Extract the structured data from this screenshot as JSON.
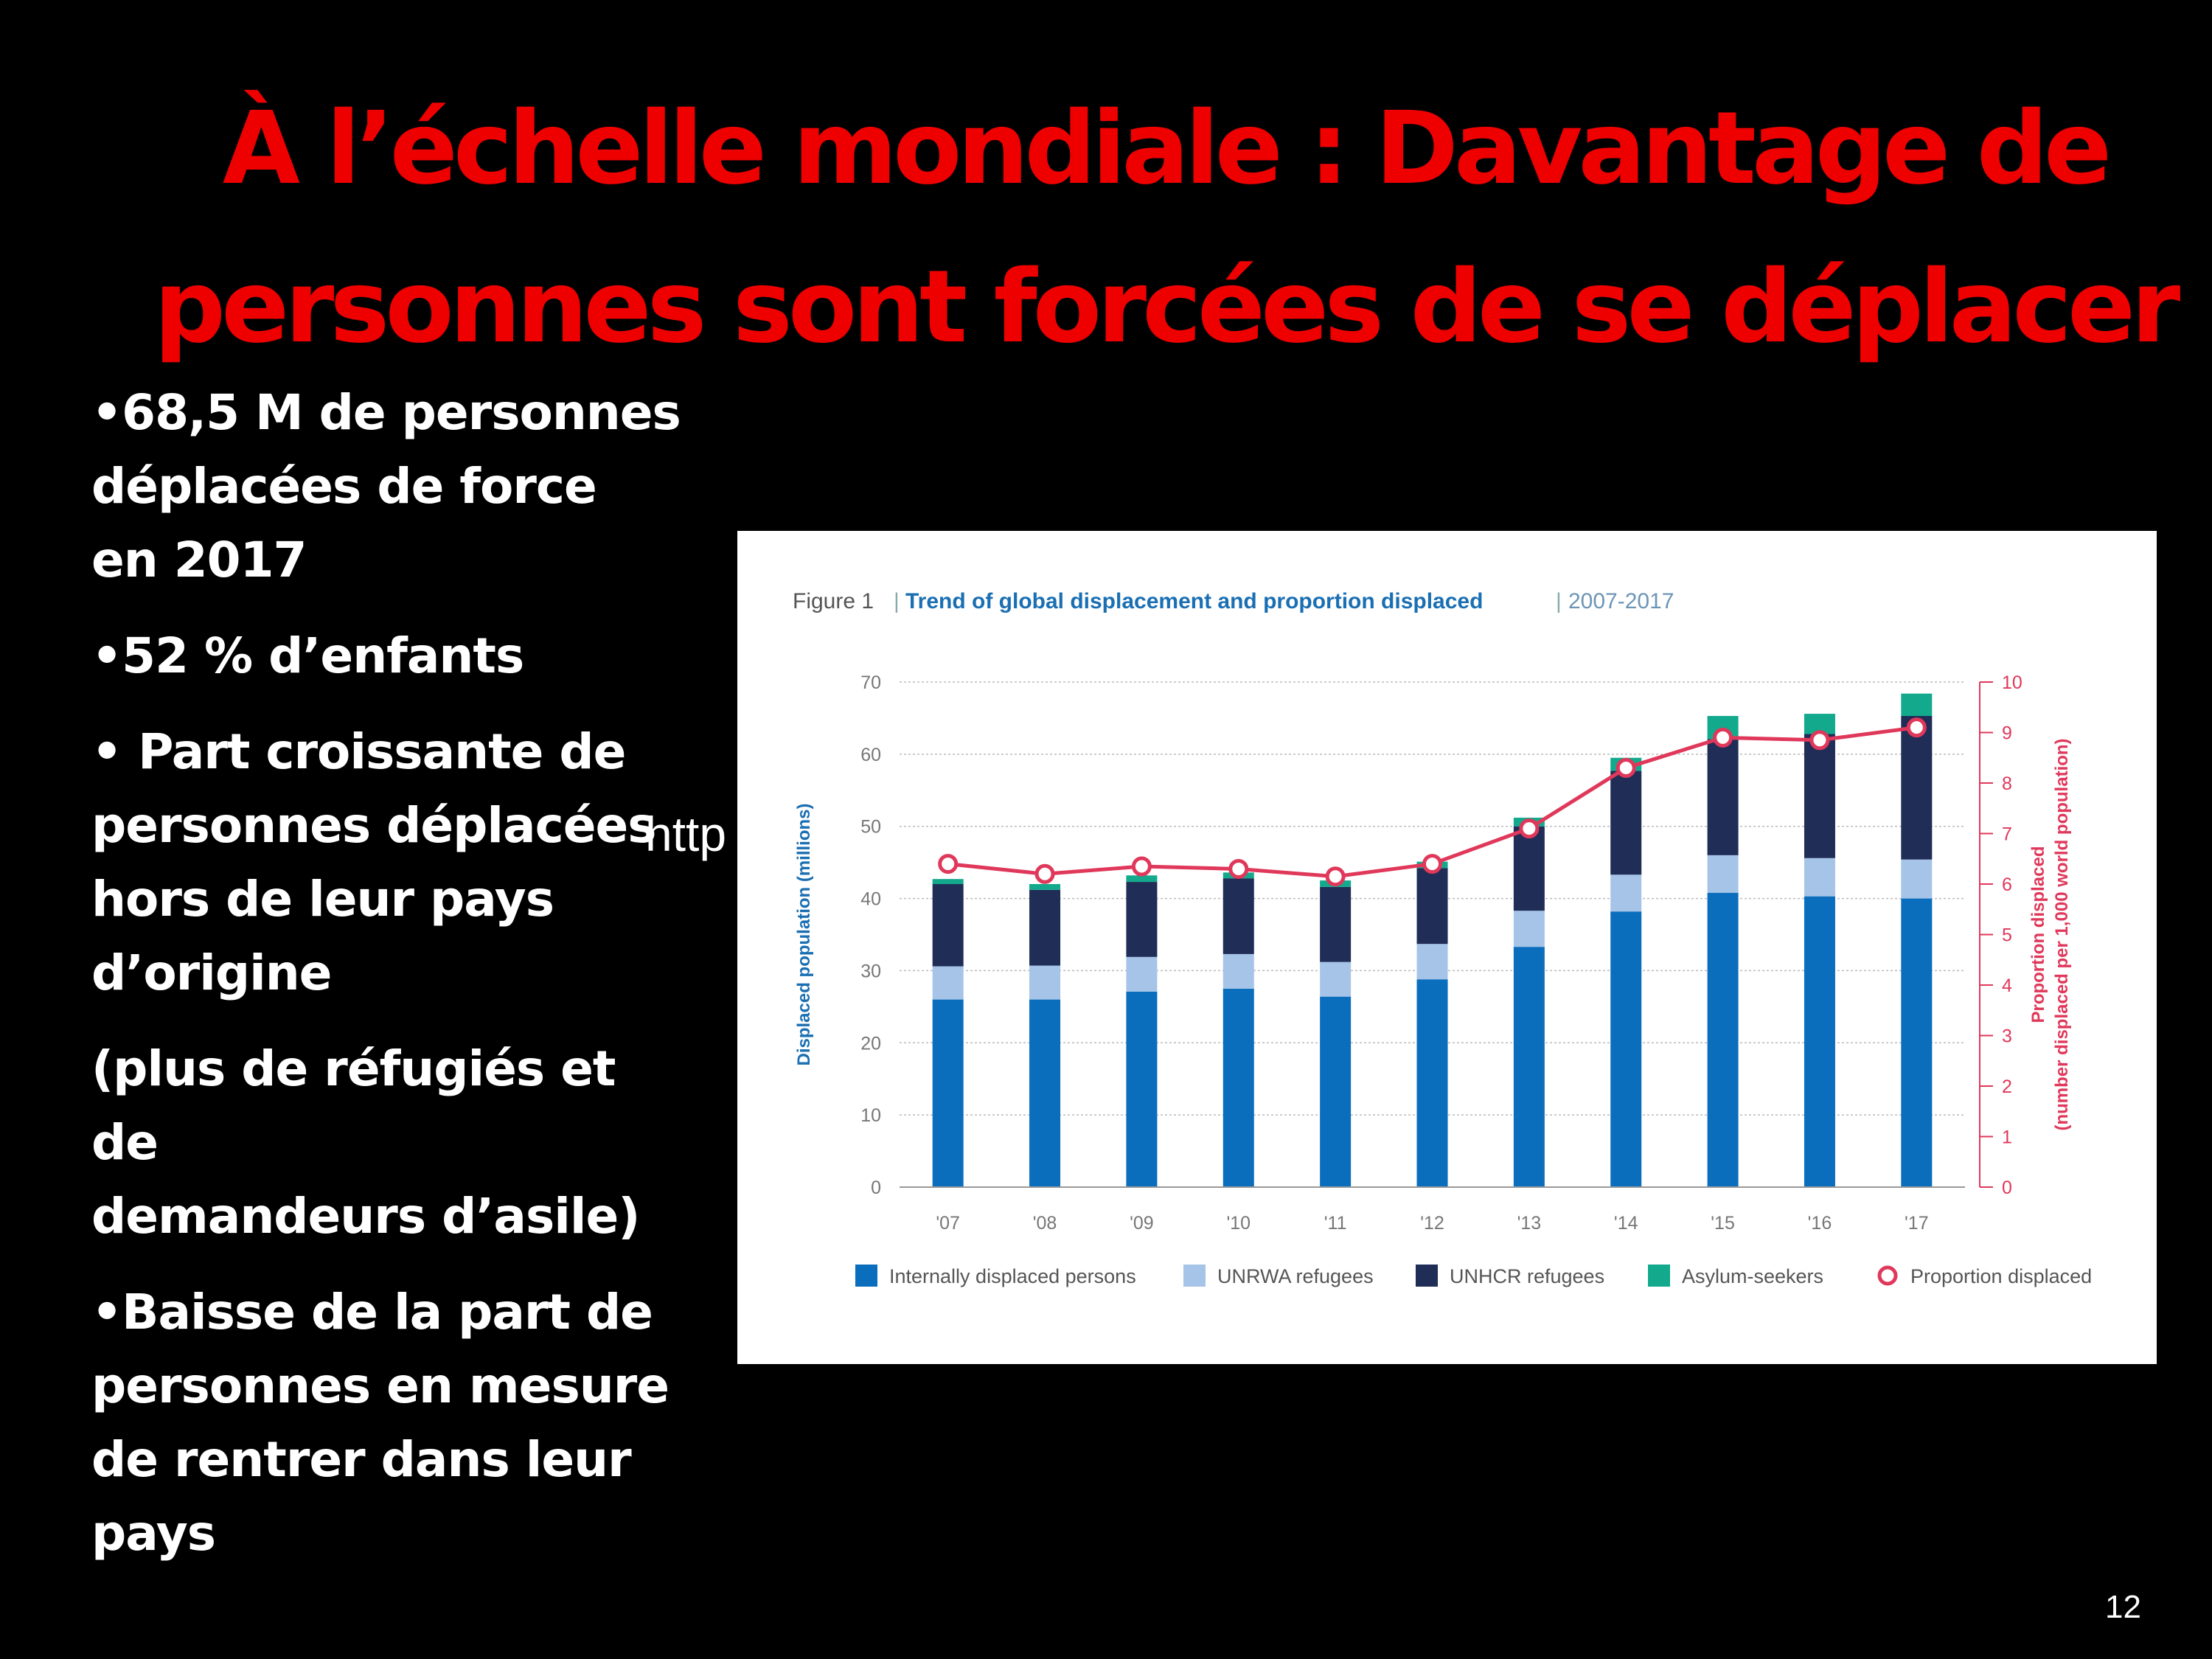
{
  "slide": {
    "title_lines": [
      "À l’échelle mondiale : Davantage de",
      "personnes sont forcées de se déplacer"
    ],
    "bullets": [
      "•68,5 M de personnes\ndéplacées de force\nen 2017",
      "•52 % d’enfants",
      "• Part croissante de\npersonnes déplacées\nhors de leur pays\nd’origine",
      "(plus de réfugiés et de\ndemandeurs d’asile)",
      "•Baisse de la part de\npersonnes en mesure\nde rentrer dans leur\npays"
    ],
    "overlay_fragment": "http",
    "page_number": "12"
  },
  "chart_data": {
    "type": "bar",
    "stacked": true,
    "figure_label": "Figure 1",
    "title": "Trend of global displacement and proportion displaced",
    "subtitle": "2007-2017",
    "categories": [
      "'07",
      "'08",
      "'09",
      "'10",
      "'11",
      "'12",
      "'13",
      "'14",
      "'15",
      "'16",
      "'17"
    ],
    "series": [
      {
        "name": "Internally displaced persons",
        "color": "#0a6ebd",
        "values": [
          26.0,
          26.0,
          27.1,
          27.5,
          26.4,
          28.8,
          33.3,
          38.2,
          40.8,
          40.3,
          40.0
        ]
      },
      {
        "name": "UNRWA refugees",
        "color": "#a6c4e8",
        "values": [
          4.6,
          4.7,
          4.8,
          4.8,
          4.8,
          4.9,
          5.0,
          5.1,
          5.2,
          5.3,
          5.4
        ]
      },
      {
        "name": "UNHCR refugees",
        "color": "#1f2d57",
        "values": [
          11.4,
          10.5,
          10.4,
          10.5,
          10.4,
          10.5,
          11.7,
          14.4,
          16.1,
          17.2,
          19.9
        ]
      },
      {
        "name": "Asylum-seekers",
        "color": "#13a98d",
        "values": [
          0.7,
          0.8,
          0.9,
          0.8,
          0.9,
          0.9,
          1.2,
          1.8,
          3.2,
          2.8,
          3.1
        ]
      }
    ],
    "line_series": {
      "name": "Proportion displaced",
      "color": "#e0385a",
      "axis": "right",
      "values": [
        6.4,
        6.2,
        6.35,
        6.3,
        6.15,
        6.4,
        7.1,
        8.3,
        8.9,
        8.85,
        9.1
      ]
    },
    "ylabel": "Displaced population (millions)",
    "ylim": [
      0,
      70
    ],
    "yticks": [
      0,
      10,
      20,
      30,
      40,
      50,
      60,
      70
    ],
    "y2label_line1": "Proportion displaced",
    "y2label_line2": "(number displaced per 1,000 world population)",
    "y2lim": [
      0,
      10
    ],
    "y2ticks": [
      0,
      1,
      2,
      3,
      4,
      5,
      6,
      7,
      8,
      9,
      10
    ],
    "grid": true,
    "legend": "bottom"
  }
}
